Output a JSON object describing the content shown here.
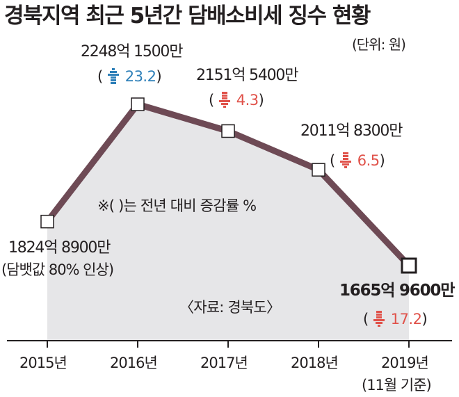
{
  "title": "경북지역 최근 5년간 담배소비세 징수 현황",
  "unit": "(단위: 원)",
  "note": "※(   )는 전년 대비 증감률 %",
  "source": "〈자료: 경북도〉",
  "colors": {
    "line": "#6e4a55",
    "area": "#e6e6e8",
    "up": "#2d7fb8",
    "down": "#e0524a"
  },
  "chart_data": {
    "type": "line",
    "title": "경북지역 최근 5년간 담배소비세 징수 현황",
    "categories": [
      "2015년",
      "2016년",
      "2017년",
      "2018년",
      "2019년"
    ],
    "category_notes": {
      "2019년": "(11월 기준)"
    },
    "values": [
      182489000000,
      224815000000,
      215154000000,
      201183000000,
      166596000000
    ],
    "value_labels": [
      "1824억 8900만",
      "2248억 1500만",
      "2151억 5400만",
      "2011억 8300만",
      "1665억 9600만"
    ],
    "point_notes": {
      "2015년": "(담뱃값 80% 인상)"
    },
    "changes": [
      null,
      {
        "direction": "up",
        "value": "23.2"
      },
      {
        "direction": "down",
        "value": "4.3"
      },
      {
        "direction": "down",
        "value": "6.5"
      },
      {
        "direction": "down",
        "value": "17.2"
      }
    ],
    "ylim": [
      130000000000,
      240000000000
    ],
    "grid": false,
    "xlabel": "",
    "ylabel": ""
  }
}
